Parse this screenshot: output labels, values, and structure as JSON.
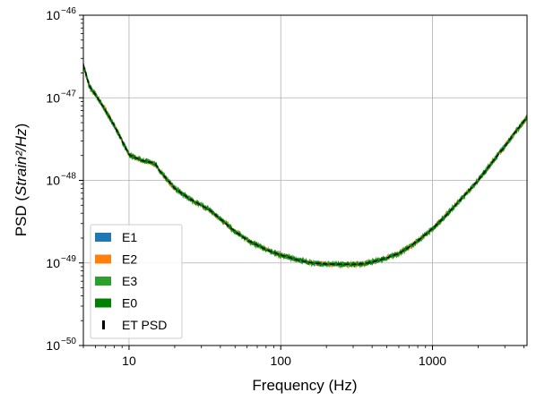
{
  "chart_data": {
    "type": "line",
    "xlabel": "Frequency (Hz)",
    "ylabel_prefix": "PSD (",
    "ylabel_math": "Strain²/Hz",
    "ylabel_suffix": ")",
    "xscale": "log",
    "yscale": "log",
    "xlim": [
      5,
      4200
    ],
    "ylim": [
      1e-50,
      1e-46
    ],
    "grid": true,
    "legend_location": "lower-left",
    "x_ticks": [
      {
        "value": 10,
        "label": "10"
      },
      {
        "value": 100,
        "label": "100"
      },
      {
        "value": 1000,
        "label": "1000"
      }
    ],
    "y_ticks": [
      {
        "value": 1e-50,
        "base": "10",
        "exp": "−50"
      },
      {
        "value": 1e-49,
        "base": "10",
        "exp": "−49"
      },
      {
        "value": 1e-48,
        "base": "10",
        "exp": "−48"
      },
      {
        "value": 1e-47,
        "base": "10",
        "exp": "−47"
      },
      {
        "value": 1e-46,
        "base": "10",
        "exp": "−46"
      }
    ],
    "reference_curve": {
      "frequency_hz": [
        5,
        5.5,
        6,
        7,
        8,
        9,
        10,
        12,
        14,
        15,
        16,
        18,
        20,
        25,
        30,
        35,
        40,
        50,
        60,
        80,
        100,
        130,
        160,
        200,
        250,
        300,
        350,
        400,
        500,
        600,
        700,
        800,
        1000,
        1200,
        1500,
        2000,
        2500,
        3000,
        3500,
        4000,
        4200
      ],
      "psd": [
        2.5e-47,
        1.35e-47,
        1.1e-47,
        7e-48,
        4.6e-48,
        3e-48,
        2.05e-48,
        1.75e-48,
        1.65e-48,
        1.55e-48,
        1.3e-48,
        1e-48,
        8e-49,
        6e-49,
        5e-49,
        4.2e-49,
        3.4e-49,
        2.4e-49,
        1.9e-49,
        1.45e-49,
        1.25e-49,
        1.08e-49,
        1e-49,
        9.7e-50,
        9.6e-50,
        9.6e-50,
        9.8e-50,
        1.02e-49,
        1.15e-49,
        1.3e-49,
        1.55e-49,
        1.85e-49,
        2.6e-49,
        3.6e-49,
        5.6e-49,
        1e-48,
        1.7e-48,
        2.6e-48,
        3.8e-48,
        5.2e-48,
        5.8e-48
      ]
    },
    "series": [
      {
        "name": "E1",
        "color": "#1f77b4",
        "style": "noisy-psd",
        "noise_dex": 0.025
      },
      {
        "name": "E2",
        "color": "#ff7f0e",
        "style": "noisy-psd",
        "noise_dex": 0.03
      },
      {
        "name": "E3",
        "color": "#2ca02c",
        "style": "noisy-psd",
        "noise_dex": 0.03
      },
      {
        "name": "E0",
        "color": "#008000",
        "style": "noisy-psd",
        "noise_dex": 0.02
      },
      {
        "name": "ET PSD",
        "color": "#000000",
        "style": "dashed"
      }
    ]
  }
}
